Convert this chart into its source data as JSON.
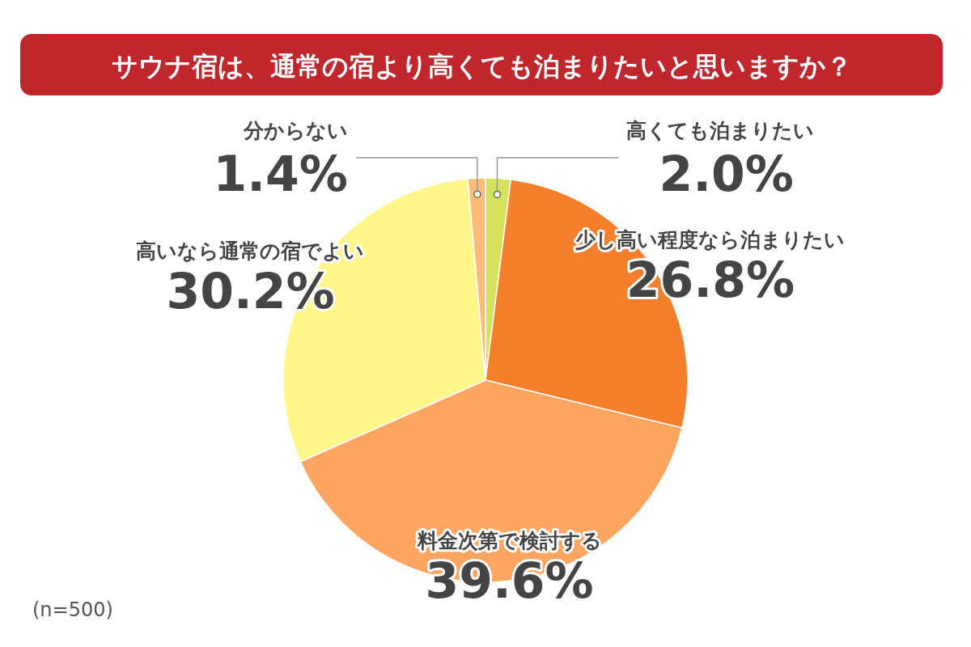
{
  "chart_data": {
    "type": "pie",
    "title": "サウナ宿は、通常の宿より高くても泊まりたいと思いますか？",
    "categories": [
      "高くても泊まりたい",
      "少し高い程度なら泊まりたい",
      "料金次第で検討する",
      "高いなら通常の宿でよい",
      "分からない"
    ],
    "values": [
      2.0,
      26.8,
      39.6,
      30.2,
      1.4
    ],
    "value_labels": [
      "2.0%",
      "26.8%",
      "39.6%",
      "30.2%",
      "1.4%"
    ],
    "colors": [
      "#d6e35a",
      "#f67f2b",
      "#fda561",
      "#fff68c",
      "#fbbd78"
    ],
    "annotations": [
      "(n=500)"
    ]
  }
}
